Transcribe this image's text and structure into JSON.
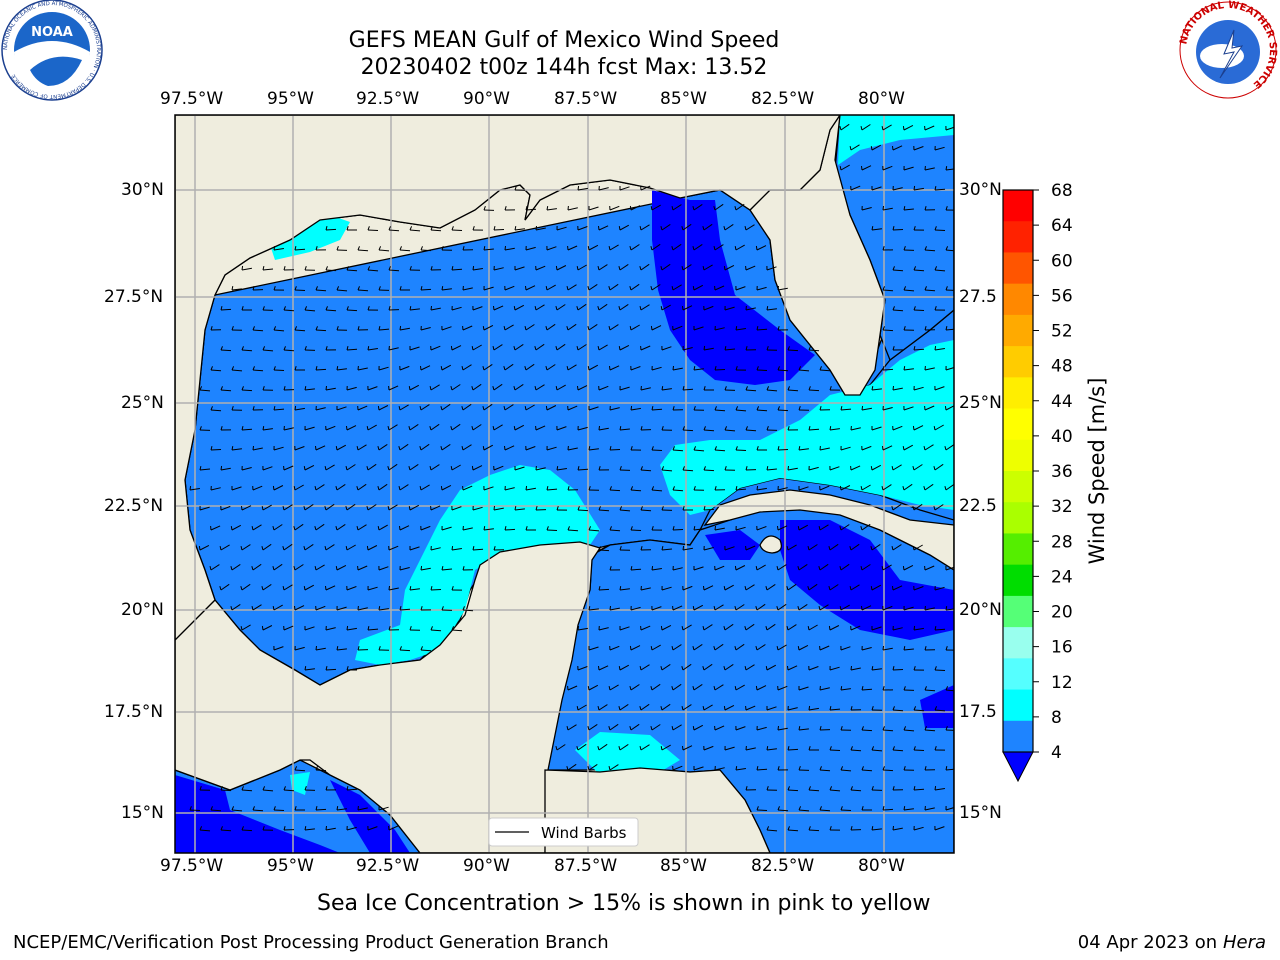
{
  "title": {
    "line1": "GEFS MEAN Gulf of Mexico Wind Speed",
    "line2": "20230402 t00z 144h fcst   Max: 13.52"
  },
  "logos": {
    "left_text": "NOAA",
    "left_ring_text": "NATIONAL OCEANIC AND ATMOSPHERIC ADMINISTRATION · U.S. DEPARTMENT OF COMMERCE",
    "right_ring_text": "NATIONAL WEATHER SERVICE"
  },
  "map": {
    "lon_labels": [
      "97.5°W",
      "95°W",
      "92.5°W",
      "90°W",
      "87.5°W",
      "85°W",
      "82.5°W",
      "80°W"
    ],
    "lat_labels_left": [
      "30°N",
      "27.5°N",
      "25°N",
      "22.5°N",
      "20°N",
      "17.5°N",
      "15°N"
    ],
    "lat_labels_right": [
      "30°N",
      "27.5",
      "25°N",
      "22.5",
      "20°N",
      "17.5",
      "15°N"
    ],
    "legend_label": "Wind Barbs",
    "colors": {
      "land": "#efedde",
      "wind_4_8": "#1e84ff",
      "wind_8_12": "#00ffff",
      "wind_below_4": "#0000ff",
      "grid": "#b0b0b0"
    }
  },
  "colorbar": {
    "label": "Wind Speed [m/s]",
    "ticks": [
      "68",
      "64",
      "60",
      "56",
      "52",
      "48",
      "44",
      "40",
      "36",
      "32",
      "28",
      "24",
      "20",
      "16",
      "12",
      "8",
      "4"
    ],
    "colors": [
      "#ff0000",
      "#ff2200",
      "#ff5500",
      "#ff8800",
      "#ffaa00",
      "#ffcc00",
      "#ffee00",
      "#ffff00",
      "#eeff00",
      "#ccff00",
      "#aaff00",
      "#55ee00",
      "#00dd00",
      "#55ff77",
      "#99ffee",
      "#55ffff",
      "#00ffff",
      "#1e84ff"
    ],
    "under_color": "#0000ff"
  },
  "caption": "Sea Ice Concentration > 15% is shown in pink to yellow",
  "footer": {
    "left": "NCEP/EMC/Verification Post Processing Product Generation Branch",
    "right_prefix": "04 Apr 2023 on ",
    "right_machine": "Hera"
  }
}
